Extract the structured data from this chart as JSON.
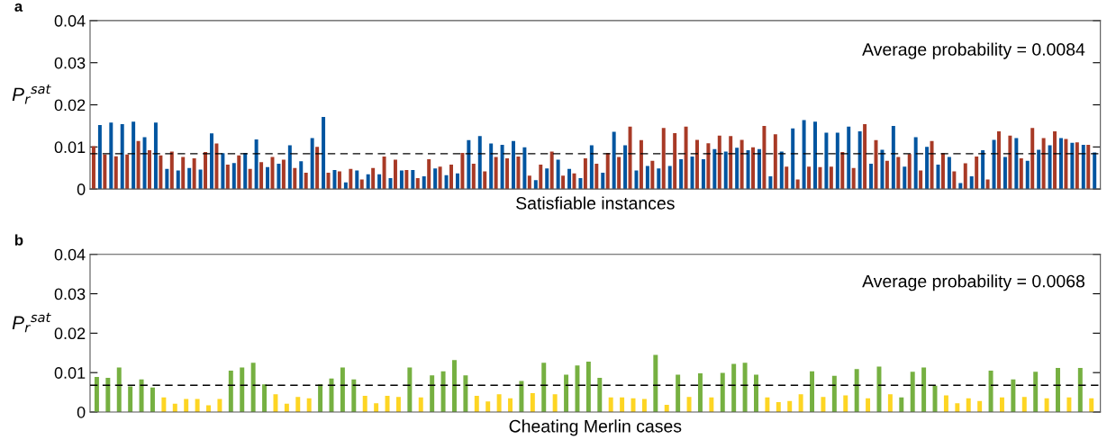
{
  "chart_data": [
    {
      "type": "bar",
      "title": "a",
      "xlabel": "Satisfiable instances",
      "ylabel": "P$_{r}$$^{sat}$",
      "categories": [
        null,
        null,
        null,
        null,
        null,
        null,
        null,
        null,
        null,
        null,
        null,
        null,
        null,
        null,
        null,
        null,
        null,
        null,
        null,
        null,
        null,
        null,
        null,
        null,
        null,
        null,
        null,
        null,
        null,
        null,
        null,
        null,
        null,
        null,
        null,
        null,
        null,
        null,
        null,
        null,
        null,
        null,
        null,
        null,
        null,
        null,
        null,
        null,
        null,
        null,
        null,
        null,
        null,
        null,
        null,
        null,
        null,
        null,
        null,
        null,
        null,
        null,
        null,
        null,
        null,
        null,
        null,
        null,
        null,
        null,
        null,
        null,
        null,
        null,
        null,
        null,
        null,
        null,
        null,
        null,
        null,
        null,
        null,
        null,
        null,
        null,
        null,
        null,
        null,
        null
      ],
      "series": [
        {
          "color": "#a83a26",
          "values": [
            0.0102,
            0.0082,
            0.0078,
            0.0082,
            0.0114,
            0.0092,
            0.008,
            0.0089,
            0.0076,
            0.0073,
            0.0088,
            0.0108,
            0.0058,
            0.008,
            0.0048,
            0.0064,
            0.0076,
            0.007,
            0.005,
            0.0039,
            0.01,
            0.0039,
            0.0042,
            0.0048,
            0.0023,
            0.005,
            0.0077,
            0.007,
            0.0045,
            0.0026,
            0.0071,
            0.0053,
            0.0058,
            0.0086,
            0.006,
            0.0042,
            0.0076,
            0.0073,
            0.0077,
            0.0032,
            0.0058,
            0.0089,
            0.0032,
            0.0037,
            0.0073,
            0.006,
            0.0086,
            0.0076,
            0.0148,
            0.0116,
            0.0067,
            0.0145,
            0.0133,
            0.0148,
            0.0117,
            0.0109,
            0.0127,
            0.0126,
            0.0117,
            0.0099,
            0.015,
            0.013,
            0.0053,
            0.0023,
            0.0053,
            0.0052,
            0.0053,
            0.0088,
            0.005,
            0.0154,
            0.0116,
            0.0067,
            0.0076,
            0.0083,
            0.0044,
            0.0114,
            0.0085,
            0.0042,
            0.0061,
            0.0077,
            0.0023,
            0.0137,
            0.0127,
            0.0073,
            0.0145,
            0.0121,
            0.0137,
            0.0119,
            0.0111,
            0.0105
          ]
        },
        {
          "color": "#0055a0",
          "values": [
            0.0152,
            0.0158,
            0.0154,
            0.016,
            0.0123,
            0.0158,
            0.0048,
            0.0044,
            0.005,
            0.0046,
            0.0132,
            0.0085,
            0.0062,
            0.0086,
            0.0118,
            0.0052,
            0.006,
            0.0104,
            0.0066,
            0.0121,
            0.0171,
            0.0045,
            0.0016,
            0.0044,
            0.0035,
            0.0035,
            0.0026,
            0.0044,
            0.0045,
            0.003,
            0.0049,
            0.0033,
            0.0037,
            0.0116,
            0.0126,
            0.0108,
            0.0105,
            0.0114,
            0.0099,
            0.0021,
            0.0049,
            0.007,
            0.0048,
            0.0026,
            0.0104,
            0.0039,
            0.0136,
            0.0104,
            0.0044,
            0.0055,
            0.0049,
            0.0055,
            0.0071,
            0.0077,
            0.0071,
            0.0095,
            0.0089,
            0.0098,
            0.0092,
            0.0095,
            0.003,
            0.0089,
            0.0144,
            0.0164,
            0.016,
            0.0134,
            0.0134,
            0.0148,
            0.0137,
            0.006,
            0.0093,
            0.015,
            0.0053,
            0.0123,
            0.01,
            0.0058,
            0.0076,
            0.0014,
            0.003,
            0.0092,
            0.0117,
            0.0076,
            0.0121,
            0.0067,
            0.0093,
            0.0104,
            0.0121,
            0.011,
            0.0105,
            0.0087
          ]
        }
      ],
      "ylim": [
        0,
        0.04
      ],
      "yticks": [
        0,
        0.01,
        0.02,
        0.03,
        0.04
      ],
      "tick_labels": "y",
      "grid": false,
      "ref_lines": [
        {
          "axis": "y",
          "value": 0.0084,
          "color": "#000000",
          "line_style": "dashed"
        }
      ],
      "annotations": [
        "Average probability = 0.0084"
      ]
    },
    {
      "type": "bar",
      "title": "b",
      "xlabel": "Cheating Merlin cases",
      "ylabel": "P$_{r}$$^{sat}$",
      "categories": [
        null,
        null,
        null,
        null,
        null,
        null,
        null,
        null,
        null,
        null,
        null,
        null,
        null,
        null,
        null,
        null,
        null,
        null,
        null,
        null,
        null,
        null,
        null,
        null,
        null,
        null,
        null,
        null,
        null,
        null,
        null,
        null,
        null,
        null,
        null,
        null,
        null,
        null,
        null,
        null,
        null,
        null,
        null,
        null,
        null,
        null,
        null,
        null,
        null,
        null,
        null,
        null,
        null,
        null,
        null,
        null,
        null,
        null,
        null,
        null,
        null,
        null,
        null,
        null,
        null,
        null,
        null,
        null,
        null,
        null,
        null,
        null,
        null,
        null,
        null,
        null,
        null,
        null,
        null,
        null,
        null,
        null,
        null,
        null,
        null,
        null,
        null,
        null,
        null,
        null
      ],
      "values": [
        0.0089,
        0.0087,
        0.0113,
        0.0065,
        0.0083,
        0.0062,
        0.0037,
        0.0021,
        0.0033,
        0.0033,
        0.0017,
        0.0033,
        0.0105,
        0.0113,
        0.0125,
        0.007,
        0.0045,
        0.0021,
        0.0038,
        0.0035,
        0.007,
        0.0085,
        0.0113,
        0.0083,
        0.0041,
        0.0022,
        0.0041,
        0.0038,
        0.0113,
        0.0037,
        0.0093,
        0.0103,
        0.0132,
        0.0093,
        0.0041,
        0.0027,
        0.0045,
        0.0035,
        0.0079,
        0.0048,
        0.0125,
        0.0045,
        0.0095,
        0.0118,
        0.0128,
        0.0087,
        0.0037,
        0.0037,
        0.0035,
        0.0033,
        0.0145,
        0.0018,
        0.0095,
        0.0038,
        0.0098,
        0.0037,
        0.0099,
        0.0122,
        0.0125,
        0.0095,
        0.0037,
        0.0025,
        0.0028,
        0.0045,
        0.0103,
        0.0038,
        0.0092,
        0.0042,
        0.0109,
        0.0035,
        0.0115,
        0.0045,
        0.0037,
        0.0102,
        0.0113,
        0.0067,
        0.0042,
        0.0022,
        0.0035,
        0.0028,
        0.0105,
        0.0037,
        0.0083,
        0.0038,
        0.0102,
        0.0035,
        0.0112,
        0.0037,
        0.0112,
        0.0035
      ],
      "colors": [
        "#76b041",
        "#76b041",
        "#76b041",
        "#76b041",
        "#76b041",
        "#76b041",
        "#fdd523",
        "#fdd523",
        "#fdd523",
        "#fdd523",
        "#fdd523",
        "#fdd523",
        "#76b041",
        "#76b041",
        "#76b041",
        "#76b041",
        "#fdd523",
        "#fdd523",
        "#fdd523",
        "#fdd523",
        "#76b041",
        "#76b041",
        "#76b041",
        "#76b041",
        "#fdd523",
        "#fdd523",
        "#fdd523",
        "#fdd523",
        "#76b041",
        "#fdd523",
        "#76b041",
        "#76b041",
        "#76b041",
        "#76b041",
        "#fdd523",
        "#fdd523",
        "#fdd523",
        "#fdd523",
        "#76b041",
        "#fdd523",
        "#76b041",
        "#fdd523",
        "#76b041",
        "#76b041",
        "#76b041",
        "#76b041",
        "#fdd523",
        "#fdd523",
        "#fdd523",
        "#fdd523",
        "#76b041",
        "#fdd523",
        "#76b041",
        "#fdd523",
        "#76b041",
        "#fdd523",
        "#76b041",
        "#76b041",
        "#76b041",
        "#76b041",
        "#fdd523",
        "#fdd523",
        "#fdd523",
        "#fdd523",
        "#76b041",
        "#fdd523",
        "#76b041",
        "#fdd523",
        "#76b041",
        "#fdd523",
        "#76b041",
        "#fdd523",
        "#76b041",
        "#76b041",
        "#76b041",
        "#76b041",
        "#fdd523",
        "#fdd523",
        "#fdd523",
        "#fdd523",
        "#76b041",
        "#fdd523",
        "#76b041",
        "#fdd523",
        "#76b041",
        "#fdd523",
        "#76b041",
        "#fdd523",
        "#76b041",
        "#fdd523"
      ],
      "ylim": [
        0,
        0.04
      ],
      "yticks": [
        0,
        0.01,
        0.02,
        0.03,
        0.04
      ],
      "tick_labels": "y",
      "grid": false,
      "ref_lines": [
        {
          "axis": "y",
          "value": 0.0068,
          "color": "#000000",
          "line_style": "dashed"
        }
      ],
      "annotations": [
        "Average probability = 0.0068"
      ]
    }
  ]
}
